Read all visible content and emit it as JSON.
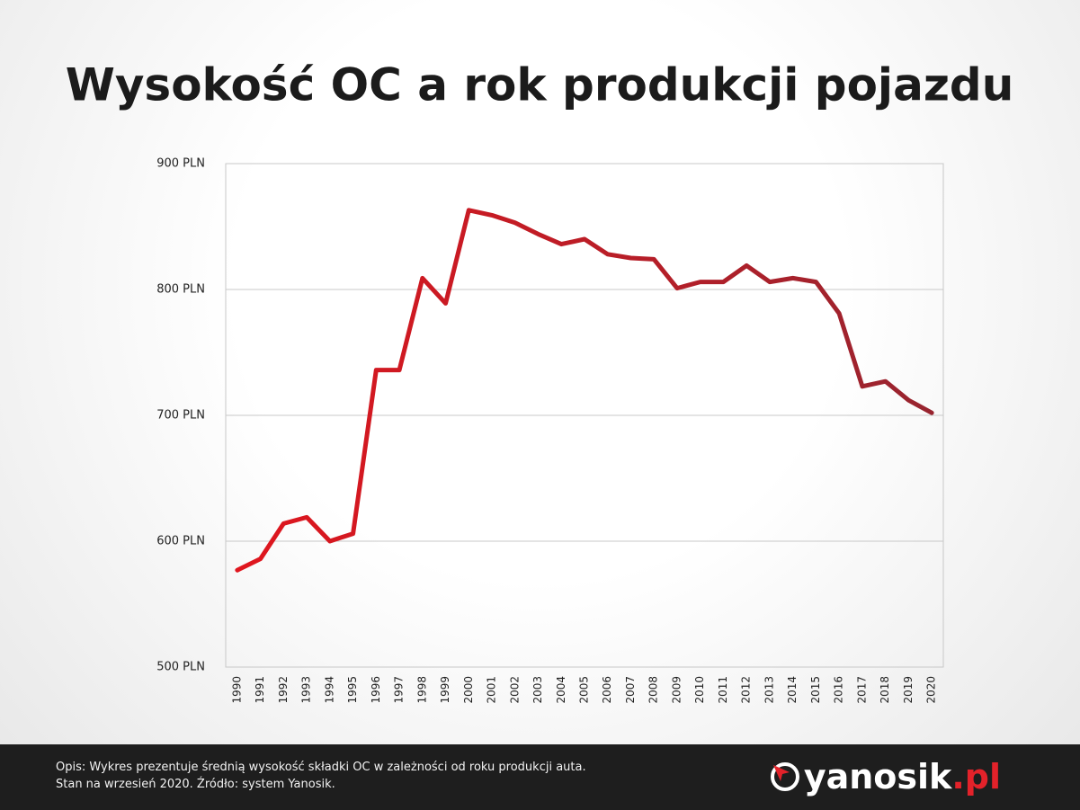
{
  "chart_data": {
    "type": "line",
    "title": "Wysokość OC a rok produkcji pojazdu",
    "categories": [
      "1990",
      "1991",
      "1992",
      "1993",
      "1994",
      "1995",
      "1996",
      "1997",
      "1998",
      "1999",
      "2000",
      "2001",
      "2002",
      "2003",
      "2004",
      "2005",
      "2006",
      "2007",
      "2008",
      "2009",
      "2010",
      "2011",
      "2012",
      "2013",
      "2014",
      "2015",
      "2016",
      "2017",
      "2018",
      "2019",
      "2020"
    ],
    "series": [
      {
        "name": "OC",
        "values": [
          577,
          586,
          614,
          619,
          600,
          606,
          736,
          736,
          809,
          789,
          863,
          859,
          853,
          844,
          836,
          840,
          828,
          825,
          824,
          801,
          806,
          806,
          819,
          806,
          809,
          806,
          781,
          723,
          727,
          712,
          702
        ]
      }
    ],
    "line_gradient": [
      "#e0161e",
      "#98242f"
    ],
    "ylim": [
      500,
      900
    ],
    "yticks": [
      {
        "value": 500,
        "label": "500 PLN"
      },
      {
        "value": 600,
        "label": "600 PLN"
      },
      {
        "value": 700,
        "label": "700 PLN"
      },
      {
        "value": 800,
        "label": "800 PLN"
      },
      {
        "value": 900,
        "label": "900 PLN"
      }
    ],
    "grid": true
  },
  "footer": {
    "description": [
      "Opis: Wykres prezentuje średnią wysokość składki OC w zależności od roku produkcji auta.",
      "Stan na wrzesień 2020. Źródło: system Yanosik."
    ],
    "logo": {
      "name": "yanosik",
      "suffix": ".pl"
    }
  }
}
